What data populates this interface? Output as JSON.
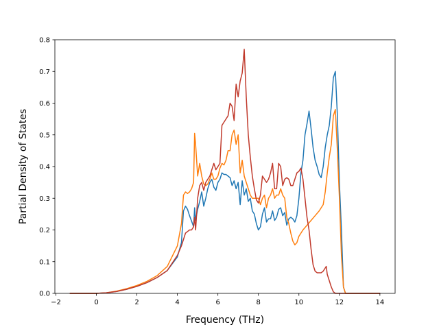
{
  "chart_data": {
    "type": "line",
    "title": "",
    "xlabel": "Frequency (THz)",
    "ylabel": "Partial Density of States",
    "xlim": [
      -2.05,
      14.75
    ],
    "ylim": [
      0,
      0.8
    ],
    "xticks": [
      -2,
      0,
      2,
      4,
      6,
      8,
      10,
      12,
      14
    ],
    "xtick_labels": [
      "−2",
      "0",
      "2",
      "4",
      "6",
      "8",
      "10",
      "12",
      "14"
    ],
    "yticks": [
      0.0,
      0.1,
      0.2,
      0.3,
      0.4,
      0.5,
      0.6,
      0.7,
      0.8
    ],
    "ytick_labels": [
      "0.0",
      "0.1",
      "0.2",
      "0.3",
      "0.4",
      "0.5",
      "0.6",
      "0.7",
      "0.8"
    ],
    "grid": false,
    "legend": false,
    "series": [
      {
        "color": "#1f77b4",
        "points": [
          [
            -1.3,
            0
          ],
          [
            0,
            0
          ],
          [
            0.5,
            0.002
          ],
          [
            1,
            0.006
          ],
          [
            1.5,
            0.013
          ],
          [
            2,
            0.022
          ],
          [
            2.5,
            0.034
          ],
          [
            3,
            0.05
          ],
          [
            3.5,
            0.072
          ],
          [
            4,
            0.115
          ],
          [
            4.2,
            0.16
          ],
          [
            4.3,
            0.26
          ],
          [
            4.4,
            0.275
          ],
          [
            4.5,
            0.265
          ],
          [
            4.6,
            0.245
          ],
          [
            4.7,
            0.228
          ],
          [
            4.8,
            0.21
          ],
          [
            4.85,
            0.27
          ],
          [
            4.9,
            0.23
          ],
          [
            5,
            0.265
          ],
          [
            5.1,
            0.29
          ],
          [
            5.2,
            0.32
          ],
          [
            5.3,
            0.275
          ],
          [
            5.4,
            0.3
          ],
          [
            5.5,
            0.33
          ],
          [
            5.6,
            0.35
          ],
          [
            5.7,
            0.36
          ],
          [
            5.8,
            0.335
          ],
          [
            5.9,
            0.325
          ],
          [
            6,
            0.35
          ],
          [
            6.1,
            0.36
          ],
          [
            6.2,
            0.38
          ],
          [
            6.3,
            0.375
          ],
          [
            6.4,
            0.375
          ],
          [
            6.5,
            0.37
          ],
          [
            6.6,
            0.365
          ],
          [
            6.7,
            0.34
          ],
          [
            6.8,
            0.355
          ],
          [
            6.9,
            0.33
          ],
          [
            7,
            0.35
          ],
          [
            7.1,
            0.28
          ],
          [
            7.2,
            0.355
          ],
          [
            7.3,
            0.31
          ],
          [
            7.4,
            0.33
          ],
          [
            7.5,
            0.29
          ],
          [
            7.6,
            0.3
          ],
          [
            7.7,
            0.26
          ],
          [
            7.8,
            0.25
          ],
          [
            7.9,
            0.22
          ],
          [
            8,
            0.2
          ],
          [
            8.1,
            0.21
          ],
          [
            8.2,
            0.25
          ],
          [
            8.3,
            0.27
          ],
          [
            8.4,
            0.225
          ],
          [
            8.5,
            0.235
          ],
          [
            8.6,
            0.235
          ],
          [
            8.7,
            0.26
          ],
          [
            8.8,
            0.23
          ],
          [
            8.9,
            0.24
          ],
          [
            9,
            0.265
          ],
          [
            9.1,
            0.27
          ],
          [
            9.2,
            0.245
          ],
          [
            9.3,
            0.255
          ],
          [
            9.4,
            0.215
          ],
          [
            9.5,
            0.235
          ],
          [
            9.6,
            0.24
          ],
          [
            9.7,
            0.235
          ],
          [
            9.8,
            0.225
          ],
          [
            9.9,
            0.245
          ],
          [
            10,
            0.3
          ],
          [
            10.1,
            0.38
          ],
          [
            10.2,
            0.42
          ],
          [
            10.3,
            0.5
          ],
          [
            10.4,
            0.535
          ],
          [
            10.5,
            0.575
          ],
          [
            10.6,
            0.52
          ],
          [
            10.7,
            0.46
          ],
          [
            10.8,
            0.42
          ],
          [
            10.9,
            0.4
          ],
          [
            11,
            0.375
          ],
          [
            11.1,
            0.365
          ],
          [
            11.2,
            0.4
          ],
          [
            11.3,
            0.46
          ],
          [
            11.4,
            0.5
          ],
          [
            11.5,
            0.53
          ],
          [
            11.6,
            0.59
          ],
          [
            11.7,
            0.68
          ],
          [
            11.8,
            0.7
          ],
          [
            11.9,
            0.56
          ],
          [
            12,
            0.35
          ],
          [
            12.1,
            0.2
          ],
          [
            12.2,
            0.02
          ],
          [
            12.3,
            0
          ],
          [
            14,
            0
          ]
        ]
      },
      {
        "color": "#ff7f0e",
        "points": [
          [
            -1.3,
            0
          ],
          [
            0,
            0
          ],
          [
            0.5,
            0.002
          ],
          [
            1,
            0.007
          ],
          [
            1.5,
            0.015
          ],
          [
            2,
            0.025
          ],
          [
            2.5,
            0.038
          ],
          [
            3,
            0.056
          ],
          [
            3.5,
            0.085
          ],
          [
            4,
            0.15
          ],
          [
            4.2,
            0.22
          ],
          [
            4.3,
            0.31
          ],
          [
            4.4,
            0.32
          ],
          [
            4.5,
            0.315
          ],
          [
            4.6,
            0.32
          ],
          [
            4.7,
            0.33
          ],
          [
            4.8,
            0.35
          ],
          [
            4.85,
            0.505
          ],
          [
            4.9,
            0.47
          ],
          [
            5,
            0.37
          ],
          [
            5.1,
            0.41
          ],
          [
            5.2,
            0.37
          ],
          [
            5.3,
            0.345
          ],
          [
            5.4,
            0.34
          ],
          [
            5.5,
            0.345
          ],
          [
            5.6,
            0.36
          ],
          [
            5.7,
            0.38
          ],
          [
            5.8,
            0.36
          ],
          [
            5.9,
            0.36
          ],
          [
            6,
            0.37
          ],
          [
            6.1,
            0.395
          ],
          [
            6.2,
            0.41
          ],
          [
            6.3,
            0.405
          ],
          [
            6.4,
            0.42
          ],
          [
            6.5,
            0.45
          ],
          [
            6.6,
            0.45
          ],
          [
            6.7,
            0.5
          ],
          [
            6.8,
            0.515
          ],
          [
            6.9,
            0.47
          ],
          [
            7,
            0.5
          ],
          [
            7.1,
            0.38
          ],
          [
            7.2,
            0.42
          ],
          [
            7.3,
            0.37
          ],
          [
            7.4,
            0.35
          ],
          [
            7.5,
            0.33
          ],
          [
            7.6,
            0.31
          ],
          [
            7.7,
            0.3
          ],
          [
            7.8,
            0.3
          ],
          [
            7.9,
            0.3
          ],
          [
            8,
            0.3
          ],
          [
            8.1,
            0.28
          ],
          [
            8.2,
            0.3
          ],
          [
            8.3,
            0.31
          ],
          [
            8.4,
            0.27
          ],
          [
            8.5,
            0.3
          ],
          [
            8.6,
            0.31
          ],
          [
            8.7,
            0.33
          ],
          [
            8.8,
            0.3
          ],
          [
            8.9,
            0.31
          ],
          [
            9,
            0.31
          ],
          [
            9.1,
            0.33
          ],
          [
            9.2,
            0.31
          ],
          [
            9.3,
            0.3
          ],
          [
            9.4,
            0.24
          ],
          [
            9.5,
            0.22
          ],
          [
            9.6,
            0.19
          ],
          [
            9.7,
            0.165
          ],
          [
            9.8,
            0.153
          ],
          [
            9.9,
            0.16
          ],
          [
            10,
            0.18
          ],
          [
            10.2,
            0.2
          ],
          [
            10.4,
            0.215
          ],
          [
            10.6,
            0.23
          ],
          [
            10.8,
            0.245
          ],
          [
            11,
            0.26
          ],
          [
            11.2,
            0.28
          ],
          [
            11.3,
            0.32
          ],
          [
            11.4,
            0.38
          ],
          [
            11.5,
            0.43
          ],
          [
            11.6,
            0.47
          ],
          [
            11.7,
            0.56
          ],
          [
            11.8,
            0.58
          ],
          [
            11.9,
            0.45
          ],
          [
            12,
            0.3
          ],
          [
            12.1,
            0.12
          ],
          [
            12.2,
            0.02
          ],
          [
            12.3,
            0
          ],
          [
            14,
            0
          ]
        ]
      },
      {
        "color": "#c0392b",
        "points": [
          [
            -1.3,
            0
          ],
          [
            0,
            0
          ],
          [
            0.5,
            0.002
          ],
          [
            1,
            0.006
          ],
          [
            1.5,
            0.013
          ],
          [
            2,
            0.022
          ],
          [
            2.5,
            0.034
          ],
          [
            3,
            0.05
          ],
          [
            3.5,
            0.072
          ],
          [
            4,
            0.12
          ],
          [
            4.2,
            0.15
          ],
          [
            4.3,
            0.17
          ],
          [
            4.4,
            0.19
          ],
          [
            4.5,
            0.195
          ],
          [
            4.6,
            0.2
          ],
          [
            4.7,
            0.2
          ],
          [
            4.8,
            0.21
          ],
          [
            4.85,
            0.24
          ],
          [
            4.9,
            0.2
          ],
          [
            5,
            0.3
          ],
          [
            5.1,
            0.34
          ],
          [
            5.2,
            0.35
          ],
          [
            5.3,
            0.325
          ],
          [
            5.4,
            0.35
          ],
          [
            5.5,
            0.36
          ],
          [
            5.6,
            0.37
          ],
          [
            5.7,
            0.39
          ],
          [
            5.8,
            0.41
          ],
          [
            5.9,
            0.39
          ],
          [
            6,
            0.4
          ],
          [
            6.1,
            0.41
          ],
          [
            6.2,
            0.53
          ],
          [
            6.3,
            0.54
          ],
          [
            6.4,
            0.55
          ],
          [
            6.5,
            0.56
          ],
          [
            6.6,
            0.6
          ],
          [
            6.7,
            0.59
          ],
          [
            6.8,
            0.545
          ],
          [
            6.9,
            0.66
          ],
          [
            7,
            0.62
          ],
          [
            7.1,
            0.67
          ],
          [
            7.2,
            0.695
          ],
          [
            7.3,
            0.77
          ],
          [
            7.4,
            0.62
          ],
          [
            7.5,
            0.5
          ],
          [
            7.6,
            0.43
          ],
          [
            7.7,
            0.37
          ],
          [
            7.8,
            0.33
          ],
          [
            7.9,
            0.295
          ],
          [
            8,
            0.285
          ],
          [
            8.1,
            0.31
          ],
          [
            8.2,
            0.37
          ],
          [
            8.3,
            0.36
          ],
          [
            8.4,
            0.35
          ],
          [
            8.5,
            0.36
          ],
          [
            8.6,
            0.38
          ],
          [
            8.7,
            0.41
          ],
          [
            8.8,
            0.33
          ],
          [
            8.9,
            0.33
          ],
          [
            9,
            0.41
          ],
          [
            9.1,
            0.4
          ],
          [
            9.2,
            0.34
          ],
          [
            9.3,
            0.36
          ],
          [
            9.4,
            0.365
          ],
          [
            9.5,
            0.36
          ],
          [
            9.6,
            0.34
          ],
          [
            9.7,
            0.34
          ],
          [
            9.8,
            0.36
          ],
          [
            9.9,
            0.38
          ],
          [
            10,
            0.385
          ],
          [
            10.1,
            0.395
          ],
          [
            10.2,
            0.36
          ],
          [
            10.3,
            0.3
          ],
          [
            10.4,
            0.24
          ],
          [
            10.5,
            0.2
          ],
          [
            10.6,
            0.14
          ],
          [
            10.7,
            0.09
          ],
          [
            10.8,
            0.07
          ],
          [
            10.9,
            0.065
          ],
          [
            11,
            0.065
          ],
          [
            11.1,
            0.065
          ],
          [
            11.2,
            0.07
          ],
          [
            11.3,
            0.08
          ],
          [
            11.35,
            0.085
          ],
          [
            11.4,
            0.06
          ],
          [
            11.5,
            0.04
          ],
          [
            11.6,
            0.02
          ],
          [
            11.7,
            0.005
          ],
          [
            11.8,
            0
          ],
          [
            14,
            0
          ]
        ]
      }
    ]
  }
}
